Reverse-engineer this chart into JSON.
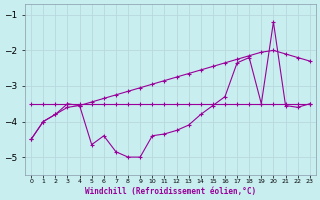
{
  "xlabel": "Windchill (Refroidissement éolien,°C)",
  "x": [
    0,
    1,
    2,
    3,
    4,
    5,
    6,
    7,
    8,
    9,
    10,
    11,
    12,
    13,
    14,
    15,
    16,
    17,
    18,
    19,
    20,
    21,
    22,
    23
  ],
  "line_trend": [
    -4.5,
    -4.0,
    -3.8,
    -3.6,
    -3.55,
    -3.45,
    -3.35,
    -3.25,
    -3.15,
    -3.05,
    -2.95,
    -2.85,
    -2.75,
    -2.65,
    -2.55,
    -2.45,
    -2.35,
    -2.25,
    -2.15,
    -2.05,
    -2.0,
    -2.1,
    -2.2,
    -2.3
  ],
  "line_flat": [
    -3.5,
    -3.5,
    -3.5,
    -3.5,
    -3.5,
    -3.5,
    -3.5,
    -3.5,
    -3.5,
    -3.5,
    -3.5,
    -3.5,
    -3.5,
    -3.5,
    -3.5,
    -3.5,
    -3.5,
    -3.5,
    -3.5,
    -3.5,
    -3.5,
    -3.5,
    -3.5,
    -3.5
  ],
  "line_volatile": [
    -4.5,
    -4.0,
    -3.8,
    -3.5,
    -3.55,
    -4.65,
    -4.4,
    -4.85,
    -5.0,
    -5.0,
    -4.4,
    -4.35,
    -4.25,
    -4.1,
    -3.8,
    -3.55,
    -3.3,
    -2.35,
    -2.2,
    -3.5,
    -1.2,
    -3.55,
    -3.6,
    -3.5
  ],
  "ylim": [
    -5.5,
    -0.7
  ],
  "yticks": [
    -5,
    -4,
    -3,
    -2,
    -1
  ],
  "color": "#990099",
  "bg_color": "#c8eef0",
  "grid_color": "#b8d8dc",
  "linewidth": 0.8
}
